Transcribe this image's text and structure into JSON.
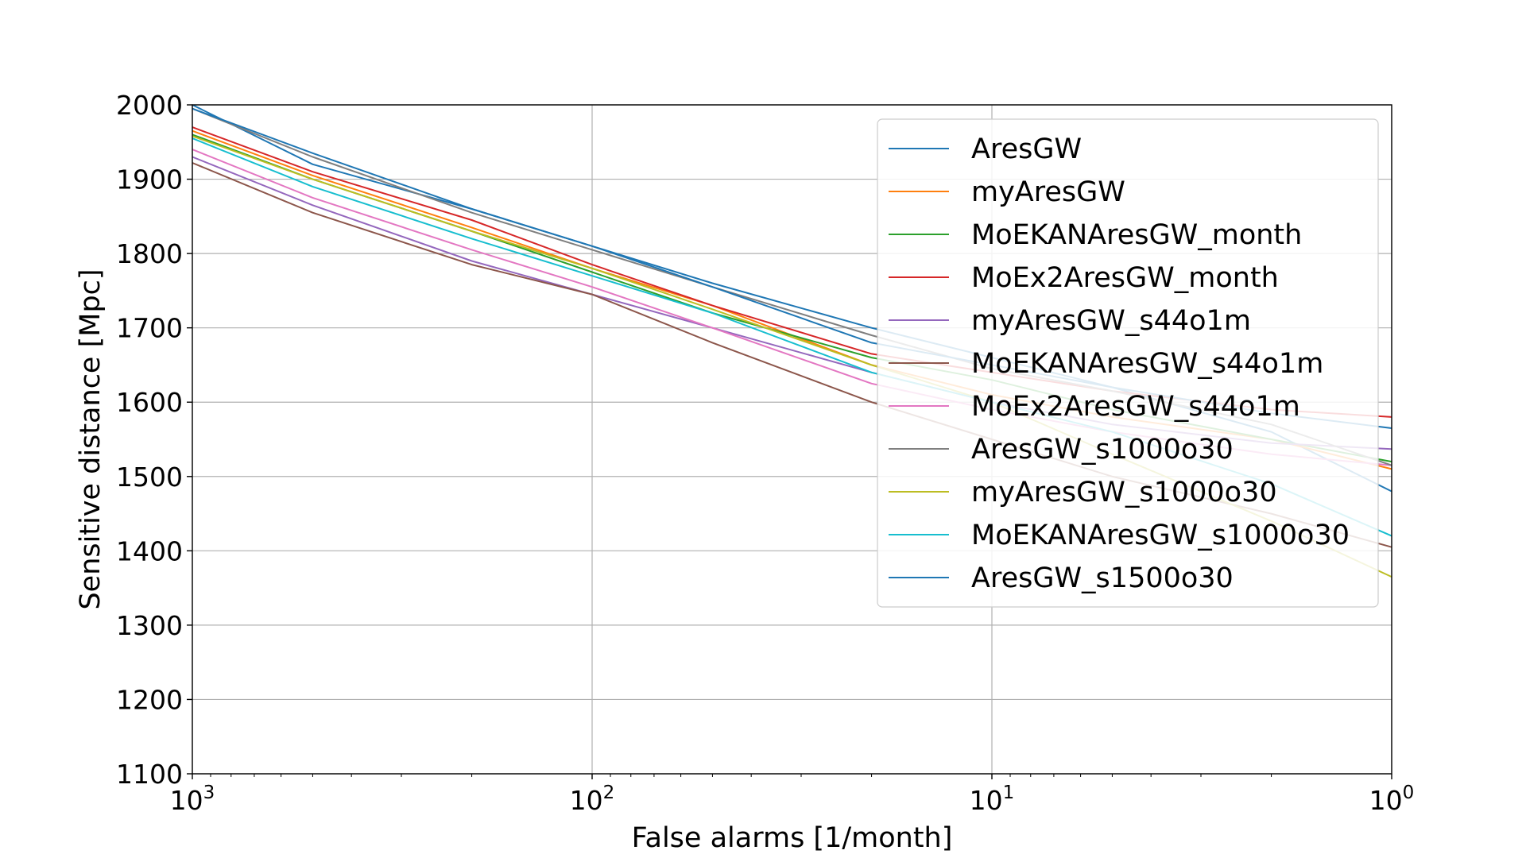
{
  "chart_data": {
    "type": "line",
    "xlabel": "False alarms [1/month]",
    "ylabel": "Sensitive distance [Mpc]",
    "xscale": "log",
    "x_direction": "decreasing",
    "xlim": [
      1000,
      1
    ],
    "ylim": [
      1100,
      2000
    ],
    "x_ticks": [
      {
        "value": 1000,
        "base": "10",
        "exp": "3"
      },
      {
        "value": 100,
        "base": "10",
        "exp": "2"
      },
      {
        "value": 10,
        "base": "10",
        "exp": "1"
      },
      {
        "value": 1,
        "base": "10",
        "exp": "0"
      }
    ],
    "y_ticks": [
      1100,
      1200,
      1300,
      1400,
      1500,
      1600,
      1700,
      1800,
      1900,
      2000
    ],
    "grid": true,
    "legend_position": "top-right",
    "series": [
      {
        "name": "AresGW",
        "color": "#1f77b4",
        "x": [
          1000,
          500,
          200,
          100,
          50,
          20,
          10,
          5,
          2,
          1
        ],
        "y": [
          2000,
          1920,
          1860,
          1810,
          1760,
          1700,
          1660,
          1620,
          1560,
          1480
        ]
      },
      {
        "name": "myAresGW",
        "color": "#ff7f0e",
        "x": [
          1000,
          500,
          200,
          100,
          50,
          20,
          10,
          5,
          2,
          1
        ],
        "y": [
          1965,
          1905,
          1835,
          1780,
          1730,
          1650,
          1610,
          1580,
          1550,
          1510
        ]
      },
      {
        "name": "MoEKANAresGW_month",
        "color": "#2ca02c",
        "x": [
          1000,
          500,
          200,
          100,
          50,
          20,
          10,
          5,
          2,
          1
        ],
        "y": [
          1960,
          1900,
          1830,
          1775,
          1720,
          1660,
          1630,
          1590,
          1550,
          1520
        ]
      },
      {
        "name": "MoEx2AresGW_month",
        "color": "#d62728",
        "x": [
          1000,
          500,
          200,
          100,
          50,
          20,
          10,
          5,
          2,
          1
        ],
        "y": [
          1970,
          1910,
          1845,
          1785,
          1730,
          1665,
          1640,
          1615,
          1590,
          1580
        ]
      },
      {
        "name": "myAresGW_s44o1m",
        "color": "#9467bd",
        "x": [
          1000,
          500,
          200,
          100,
          50,
          20,
          10,
          5,
          2,
          1
        ],
        "y": [
          1930,
          1865,
          1790,
          1745,
          1700,
          1640,
          1600,
          1570,
          1545,
          1537
        ]
      },
      {
        "name": "MoEKANAresGW_s44o1m",
        "color": "#8c564b",
        "x": [
          1000,
          500,
          200,
          100,
          50,
          20,
          10,
          5,
          2,
          1
        ],
        "y": [
          1922,
          1855,
          1785,
          1745,
          1680,
          1600,
          1550,
          1500,
          1450,
          1405
        ]
      },
      {
        "name": "MoEx2AresGW_s44o1m",
        "color": "#e377c2",
        "x": [
          1000,
          500,
          200,
          100,
          50,
          20,
          10,
          5,
          2,
          1
        ],
        "y": [
          1940,
          1875,
          1805,
          1755,
          1700,
          1625,
          1590,
          1560,
          1530,
          1515
        ]
      },
      {
        "name": "AresGW_s1000o30",
        "color": "#7f7f7f",
        "x": [
          1000,
          500,
          200,
          100,
          50,
          20,
          10,
          5,
          2,
          1
        ],
        "y": [
          1995,
          1930,
          1855,
          1805,
          1755,
          1690,
          1645,
          1615,
          1570,
          1515
        ]
      },
      {
        "name": "myAresGW_s1000o30",
        "color": "#bcbd22",
        "x": [
          1000,
          500,
          200,
          100,
          50,
          20,
          10,
          5,
          2,
          1
        ],
        "y": [
          1958,
          1900,
          1830,
          1780,
          1725,
          1650,
          1600,
          1530,
          1440,
          1365
        ]
      },
      {
        "name": "MoEKANAresGW_s1000o30",
        "color": "#17becf",
        "x": [
          1000,
          500,
          200,
          100,
          50,
          20,
          10,
          5,
          2,
          1
        ],
        "y": [
          1955,
          1890,
          1820,
          1770,
          1720,
          1640,
          1600,
          1560,
          1490,
          1420
        ]
      },
      {
        "name": "AresGW_s1500o30",
        "color": "#1f77b4",
        "x": [
          1000,
          500,
          200,
          100,
          50,
          20,
          10,
          5,
          2,
          1
        ],
        "y": [
          1995,
          1935,
          1860,
          1810,
          1755,
          1680,
          1650,
          1620,
          1585,
          1565
        ]
      }
    ]
  }
}
